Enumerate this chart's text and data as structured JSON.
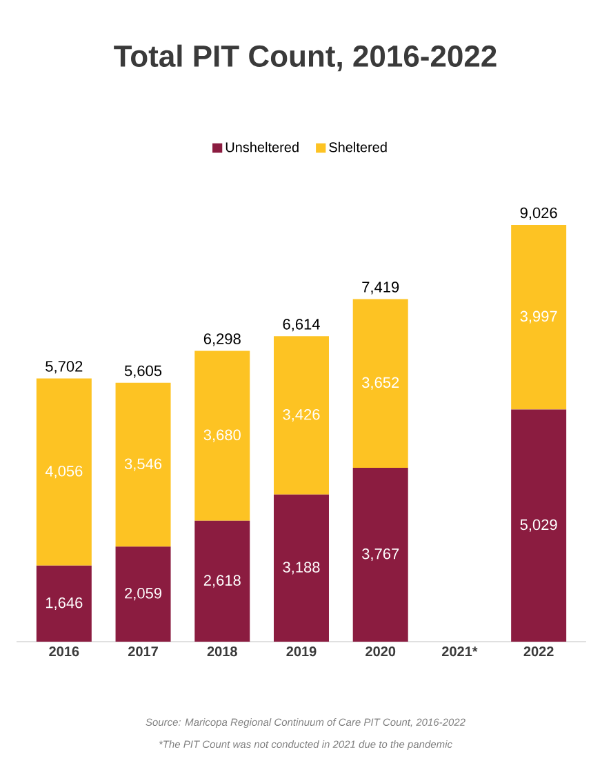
{
  "chart_data": {
    "type": "bar",
    "stacked": true,
    "title": "Total PIT Count, 2016-2022",
    "categories": [
      "2016",
      "2017",
      "2018",
      "2019",
      "2020",
      "2021*",
      "2022"
    ],
    "series": [
      {
        "name": "Unsheltered",
        "color": "#8b1c40",
        "values": [
          1646,
          2059,
          2618,
          3188,
          3767,
          null,
          5029
        ],
        "value_labels": [
          "1,646",
          "2,059",
          "2,618",
          "3,188",
          "3,767",
          null,
          "5,029"
        ]
      },
      {
        "name": "Sheltered",
        "color": "#fdc323",
        "values": [
          4056,
          3546,
          3680,
          3426,
          3652,
          null,
          3997
        ],
        "value_labels": [
          "4,056",
          "3,546",
          "3,680",
          "3,426",
          "3,652",
          null,
          "3,997"
        ]
      }
    ],
    "totals": [
      "5,702",
      "5,605",
      "6,298",
      "6,614",
      "7,419",
      null,
      "9,026"
    ],
    "legend": "top",
    "annotations": [
      "Source: Maricopa Regional Continuum of Care PIT Count, 2016-2022",
      "*The PIT Count was not conducted in 2021 due to the pandemic"
    ]
  }
}
